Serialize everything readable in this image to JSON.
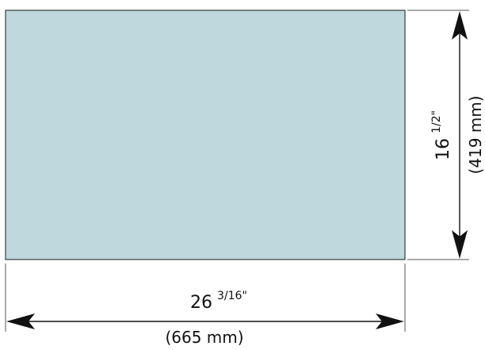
{
  "panel": {
    "fill_color": "#bfd8de",
    "stroke_color": "#3a3a3a"
  },
  "width_dimension": {
    "whole": "26",
    "fraction": "3/16\"",
    "metric": "(665 mm)"
  },
  "height_dimension": {
    "whole": "16",
    "fraction": "1/2\"",
    "metric": "(419 mm)"
  },
  "line_color": "#111111"
}
